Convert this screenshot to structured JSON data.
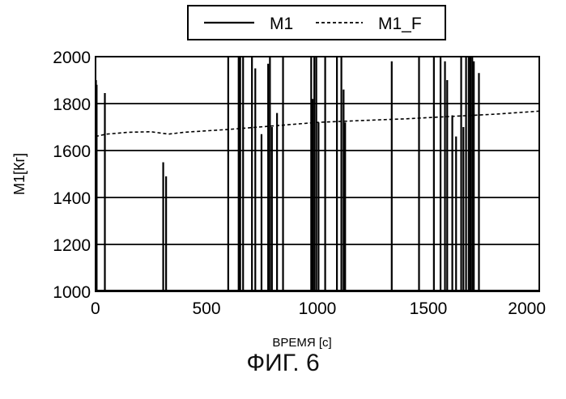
{
  "chart_data": {
    "type": "line",
    "xlabel": "ВРЕМЯ [c]",
    "ylabel": "M1[Кг]",
    "xlim": [
      0,
      2000
    ],
    "ylim": [
      1000,
      2000
    ],
    "xticks": [
      0,
      500,
      1000,
      1500,
      2000
    ],
    "yticks": [
      1000,
      1200,
      1400,
      1600,
      1800,
      2000
    ],
    "grid": "horizontal",
    "legend_position": "top",
    "series": [
      {
        "name": "M1",
        "style": "solid",
        "baseline": 1000,
        "spikes": [
          {
            "x": 2,
            "y": 1900
          },
          {
            "x": 5,
            "y": 1880
          },
          {
            "x": 42,
            "y": 1845
          },
          {
            "x": 305,
            "y": 1550
          },
          {
            "x": 318,
            "y": 1490
          },
          {
            "x": 598,
            "y": 2000
          },
          {
            "x": 645,
            "y": 2000
          },
          {
            "x": 652,
            "y": 2000
          },
          {
            "x": 665,
            "y": 2000
          },
          {
            "x": 705,
            "y": 2000
          },
          {
            "x": 720,
            "y": 1950
          },
          {
            "x": 748,
            "y": 1670
          },
          {
            "x": 778,
            "y": 1970
          },
          {
            "x": 786,
            "y": 2000
          },
          {
            "x": 795,
            "y": 1700
          },
          {
            "x": 818,
            "y": 1760
          },
          {
            "x": 845,
            "y": 2000
          },
          {
            "x": 972,
            "y": 2000
          },
          {
            "x": 978,
            "y": 1820
          },
          {
            "x": 986,
            "y": 2000
          },
          {
            "x": 995,
            "y": 2000
          },
          {
            "x": 1005,
            "y": 1720
          },
          {
            "x": 1035,
            "y": 2000
          },
          {
            "x": 1088,
            "y": 2000
          },
          {
            "x": 1108,
            "y": 2000
          },
          {
            "x": 1118,
            "y": 1860
          },
          {
            "x": 1125,
            "y": 1720
          },
          {
            "x": 1335,
            "y": 1980
          },
          {
            "x": 1458,
            "y": 2000
          },
          {
            "x": 1525,
            "y": 2000
          },
          {
            "x": 1555,
            "y": 2000
          },
          {
            "x": 1575,
            "y": 1980
          },
          {
            "x": 1585,
            "y": 1900
          },
          {
            "x": 1608,
            "y": 1750
          },
          {
            "x": 1625,
            "y": 1660
          },
          {
            "x": 1648,
            "y": 2000
          },
          {
            "x": 1658,
            "y": 1700
          },
          {
            "x": 1670,
            "y": 2000
          },
          {
            "x": 1682,
            "y": 2000
          },
          {
            "x": 1690,
            "y": 2000
          },
          {
            "x": 1698,
            "y": 2000
          },
          {
            "x": 1705,
            "y": 1980
          },
          {
            "x": 1728,
            "y": 1930
          }
        ]
      },
      {
        "name": "M1_F",
        "style": "dashed",
        "points": [
          [
            0,
            1660
          ],
          [
            50,
            1670
          ],
          [
            150,
            1678
          ],
          [
            250,
            1680
          ],
          [
            290,
            1675
          ],
          [
            330,
            1670
          ],
          [
            400,
            1678
          ],
          [
            600,
            1690
          ],
          [
            800,
            1705
          ],
          [
            1000,
            1720
          ],
          [
            1200,
            1728
          ],
          [
            1400,
            1735
          ],
          [
            1600,
            1745
          ],
          [
            1800,
            1755
          ],
          [
            2000,
            1768
          ]
        ]
      }
    ]
  },
  "caption": "ФИГ. 6"
}
